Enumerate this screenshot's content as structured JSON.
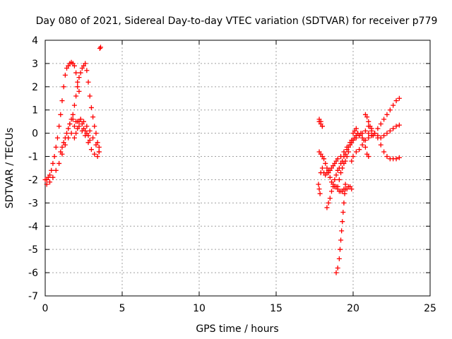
{
  "chart_data": {
    "type": "scatter",
    "title": "Day 080 of 2021, Sidereal Day-to-day VTEC variation (SDTVAR) for receiver p779",
    "xlabel": "GPS time / hours",
    "ylabel": "SDTVAR / TECUs",
    "xlim": [
      0,
      25
    ],
    "ylim": [
      -7,
      4
    ],
    "xticks": [
      0,
      5,
      10,
      15,
      20,
      25
    ],
    "yticks": [
      -7,
      -6,
      -5,
      -4,
      -3,
      -2,
      -1,
      0,
      1,
      2,
      3,
      4
    ],
    "grid": true,
    "marker": "+",
    "colors": {
      "series": "#ff0000",
      "grid": "#a0a0a0",
      "axis": "#000000"
    },
    "series": [
      {
        "name": "",
        "x": [
          0.0,
          0.1,
          0.2,
          0.3,
          0.4,
          0.5,
          0.6,
          0.7,
          0.8,
          0.9,
          1.0,
          1.1,
          1.2,
          1.3,
          1.4,
          1.5,
          1.6,
          1.7,
          1.8,
          1.9,
          2.0,
          2.1,
          2.2,
          1.0,
          1.1,
          1.2,
          1.3,
          1.4,
          1.5,
          1.6,
          1.7,
          1.8,
          1.9,
          2.0,
          2.1,
          2.2,
          2.3,
          2.4,
          2.5,
          2.6,
          2.7,
          2.8,
          2.9,
          3.0,
          3.1,
          3.2,
          3.3,
          3.4,
          3.5,
          0.1,
          0.3,
          0.5,
          0.7,
          0.9,
          1.1,
          1.3,
          1.5,
          1.7,
          1.9,
          2.1,
          2.3,
          2.5,
          2.7,
          2.9,
          3.1,
          3.3,
          3.5,
          1.9,
          2.0,
          2.1,
          2.2,
          2.3,
          2.4,
          2.5,
          2.6,
          2.7,
          2.8,
          2.9,
          1.6,
          1.8,
          2.0,
          2.2,
          2.4,
          2.6,
          2.8,
          3.0,
          3.2,
          3.4,
          3.5,
          3.55,
          3.6,
          17.8,
          17.9,
          18.0,
          17.8,
          17.9,
          18.0,
          17.8,
          17.9,
          18.0,
          18.1,
          18.2,
          18.3,
          18.4,
          18.5,
          18.6,
          18.7,
          18.8,
          18.9,
          19.0,
          19.1,
          19.2,
          19.3,
          19.4,
          19.5,
          19.6,
          19.7,
          19.8,
          19.9,
          19.0,
          19.1,
          19.2,
          19.3,
          19.4,
          19.5,
          19.6,
          19.7,
          19.8,
          19.9,
          20.0,
          20.1,
          20.2,
          20.3,
          20.4,
          20.5,
          20.6,
          20.7,
          20.8,
          20.9,
          21.0,
          18.1,
          18.2,
          18.3,
          18.4,
          18.5,
          18.6,
          18.7,
          18.8,
          18.9,
          19.0,
          19.2,
          19.4,
          19.6,
          19.8,
          20.0,
          20.2,
          20.4,
          20.6,
          20.8,
          21.0,
          21.2,
          21.4,
          21.6,
          21.8,
          22.0,
          22.2,
          22.4,
          22.6,
          22.8,
          23.0,
          18.3,
          18.4,
          18.5,
          18.6,
          18.7,
          18.8,
          18.9,
          19.0,
          19.1,
          19.2,
          19.3,
          19.4,
          19.5,
          19.6,
          19.7,
          19.8,
          19.9,
          20.0,
          20.1,
          20.2,
          20.3,
          19.9,
          20.0,
          20.2,
          20.4,
          20.6,
          20.8,
          21.0,
          21.2,
          21.4,
          21.6,
          21.8,
          22.0,
          22.2,
          22.4,
          22.6,
          22.8,
          23.0,
          18.9,
          19.0,
          19.1,
          19.15,
          19.2,
          19.25,
          19.3,
          19.35,
          19.4,
          19.45,
          19.5,
          21.0,
          21.2,
          21.4,
          21.6,
          21.8,
          22.0,
          22.2,
          22.4,
          22.6,
          22.8,
          23.0,
          20.8,
          20.9,
          21.0,
          21.1,
          21.2,
          21.3,
          17.75,
          17.8,
          17.85,
          18.0,
          17.9
        ],
        "y": [
          -2.0,
          -2.0,
          -1.9,
          -1.8,
          -1.6,
          -1.3,
          -1.0,
          -0.6,
          -0.2,
          0.3,
          0.8,
          1.4,
          2.0,
          2.5,
          2.8,
          2.9,
          3.0,
          3.05,
          3.0,
          2.9,
          2.6,
          2.2,
          1.8,
          -0.8,
          -0.6,
          -0.4,
          -0.2,
          0.0,
          0.2,
          0.4,
          0.6,
          0.8,
          1.2,
          1.6,
          2.0,
          2.4,
          2.6,
          2.8,
          2.9,
          3.0,
          2.7,
          2.2,
          1.6,
          1.1,
          0.7,
          0.3,
          0.0,
          -0.4,
          -0.6,
          -2.2,
          -2.1,
          -1.9,
          -1.6,
          -1.3,
          -0.9,
          -0.5,
          -0.2,
          0.0,
          0.3,
          0.5,
          0.6,
          0.5,
          0.3,
          0.1,
          -0.2,
          -0.5,
          -0.8,
          -0.2,
          0.0,
          0.2,
          0.5,
          0.6,
          0.4,
          0.2,
          0.1,
          0.0,
          -0.1,
          -0.3,
          0.4,
          0.6,
          0.5,
          0.3,
          0.1,
          -0.1,
          -0.4,
          -0.7,
          -0.9,
          -1.0,
          -0.8,
          3.65,
          3.7,
          0.6,
          0.5,
          0.3,
          0.5,
          0.4,
          0.3,
          -0.8,
          -0.9,
          -1.0,
          -1.1,
          -1.3,
          -1.5,
          -1.7,
          -1.9,
          -2.1,
          -2.2,
          -2.3,
          -2.3,
          -2.4,
          -2.5,
          -2.5,
          -2.5,
          -2.4,
          -2.4,
          -2.4,
          -2.3,
          -2.3,
          -2.4,
          -2.3,
          -2.0,
          -1.7,
          -1.5,
          -1.3,
          -1.2,
          -1.0,
          -0.8,
          -0.5,
          -0.3,
          0.0,
          0.1,
          0.2,
          0.0,
          -0.1,
          0.0,
          -0.2,
          -0.3,
          -0.6,
          -0.9,
          -1.0,
          -1.7,
          -1.8,
          -1.7,
          -1.6,
          -1.6,
          -1.5,
          -1.4,
          -1.3,
          -1.2,
          -1.1,
          -1.0,
          -0.8,
          -0.6,
          -0.4,
          -0.3,
          -0.2,
          -0.1,
          0.0,
          0.1,
          0.0,
          -0.1,
          0.0,
          0.2,
          0.4,
          0.6,
          0.8,
          1.0,
          1.2,
          1.4,
          1.5,
          -3.2,
          -3.0,
          -2.8,
          -2.5,
          -2.3,
          -2.0,
          -1.8,
          -1.6,
          -1.5,
          -1.3,
          -1.2,
          -1.0,
          -0.9,
          -0.7,
          -0.6,
          -0.5,
          -0.4,
          -0.3,
          -0.2,
          -0.1,
          0.0,
          -1.2,
          -1.0,
          -0.8,
          -0.7,
          -0.5,
          -0.3,
          -0.2,
          -0.1,
          0.0,
          -0.2,
          -0.5,
          -0.8,
          -1.0,
          -1.1,
          -1.1,
          -1.1,
          -1.05,
          -6.0,
          -5.8,
          -5.4,
          -5.0,
          -4.6,
          -4.2,
          -3.8,
          -3.4,
          -3.0,
          -2.6,
          -2.2,
          0.3,
          0.2,
          0.0,
          -0.1,
          -0.2,
          -0.1,
          0.0,
          0.1,
          0.2,
          0.3,
          0.35,
          0.8,
          0.7,
          0.5,
          0.3,
          0.1,
          -0.1,
          -2.2,
          -2.4,
          -2.6,
          -1.5,
          -1.7
        ]
      }
    ]
  }
}
